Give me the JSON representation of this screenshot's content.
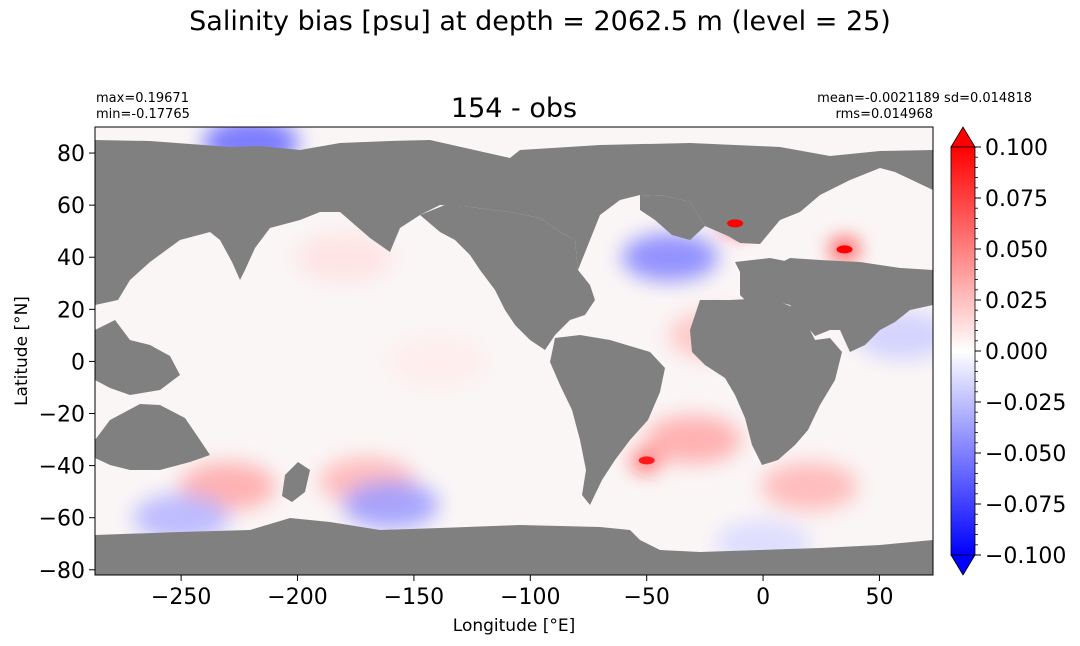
{
  "figure": {
    "suptitle": "Salinity bias [psu] at depth = 2062.5 m (level = 25)",
    "title": "154 - obs",
    "stats": {
      "max": "max=0.19671",
      "min": "min=-0.17765",
      "mean_sd": "mean=-0.0021189 sd=0.014818",
      "rms": "rms=0.014968"
    }
  },
  "chart_data": {
    "type": "heatmap",
    "title": "154 - obs",
    "xlabel": "Longitude [°E]",
    "ylabel": "Latitude [°N]",
    "xlim": [
      -287,
      73
    ],
    "ylim": [
      -82,
      90
    ],
    "xticks": [
      -250,
      -200,
      -150,
      -100,
      -50,
      0,
      50
    ],
    "yticks": [
      -80,
      -60,
      -40,
      -20,
      0,
      20,
      40,
      60,
      80
    ],
    "colorbar": {
      "min": -0.1,
      "max": 0.1,
      "ticks": [
        -0.1,
        -0.075,
        -0.05,
        -0.025,
        0.0,
        0.025,
        0.05,
        0.075,
        0.1
      ],
      "tick_labels": [
        "−0.100",
        "−0.075",
        "−0.050",
        "−0.025",
        "0.000",
        "0.025",
        "0.050",
        "0.075",
        "0.100"
      ],
      "colormap": "bwr",
      "extend": "both"
    },
    "land_color": "#808080",
    "regions": [
      {
        "lon": -40,
        "lat": 40,
        "value": -0.05
      },
      {
        "lon": -50,
        "lat": -38,
        "value": 0.09
      },
      {
        "lon": -30,
        "lat": -30,
        "value": 0.035
      },
      {
        "lon": -20,
        "lat": 10,
        "value": 0.025
      },
      {
        "lon": -230,
        "lat": -48,
        "value": 0.035
      },
      {
        "lon": -180,
        "lat": 40,
        "value": 0.012
      },
      {
        "lon": -140,
        "lat": 0,
        "value": 0.008
      },
      {
        "lon": -170,
        "lat": -46,
        "value": 0.03
      },
      {
        "lon": -160,
        "lat": -55,
        "value": -0.04
      },
      {
        "lon": -250,
        "lat": -60,
        "value": -0.03
      },
      {
        "lon": -220,
        "lat": 84,
        "value": -0.06
      },
      {
        "lon": 20,
        "lat": -48,
        "value": 0.03
      },
      {
        "lon": -12,
        "lat": 53,
        "value": 0.1
      },
      {
        "lon": 35,
        "lat": 43,
        "value": 0.1
      },
      {
        "lon": 60,
        "lat": 10,
        "value": -0.02
      },
      {
        "lon": 0,
        "lat": -70,
        "value": -0.015
      }
    ]
  }
}
